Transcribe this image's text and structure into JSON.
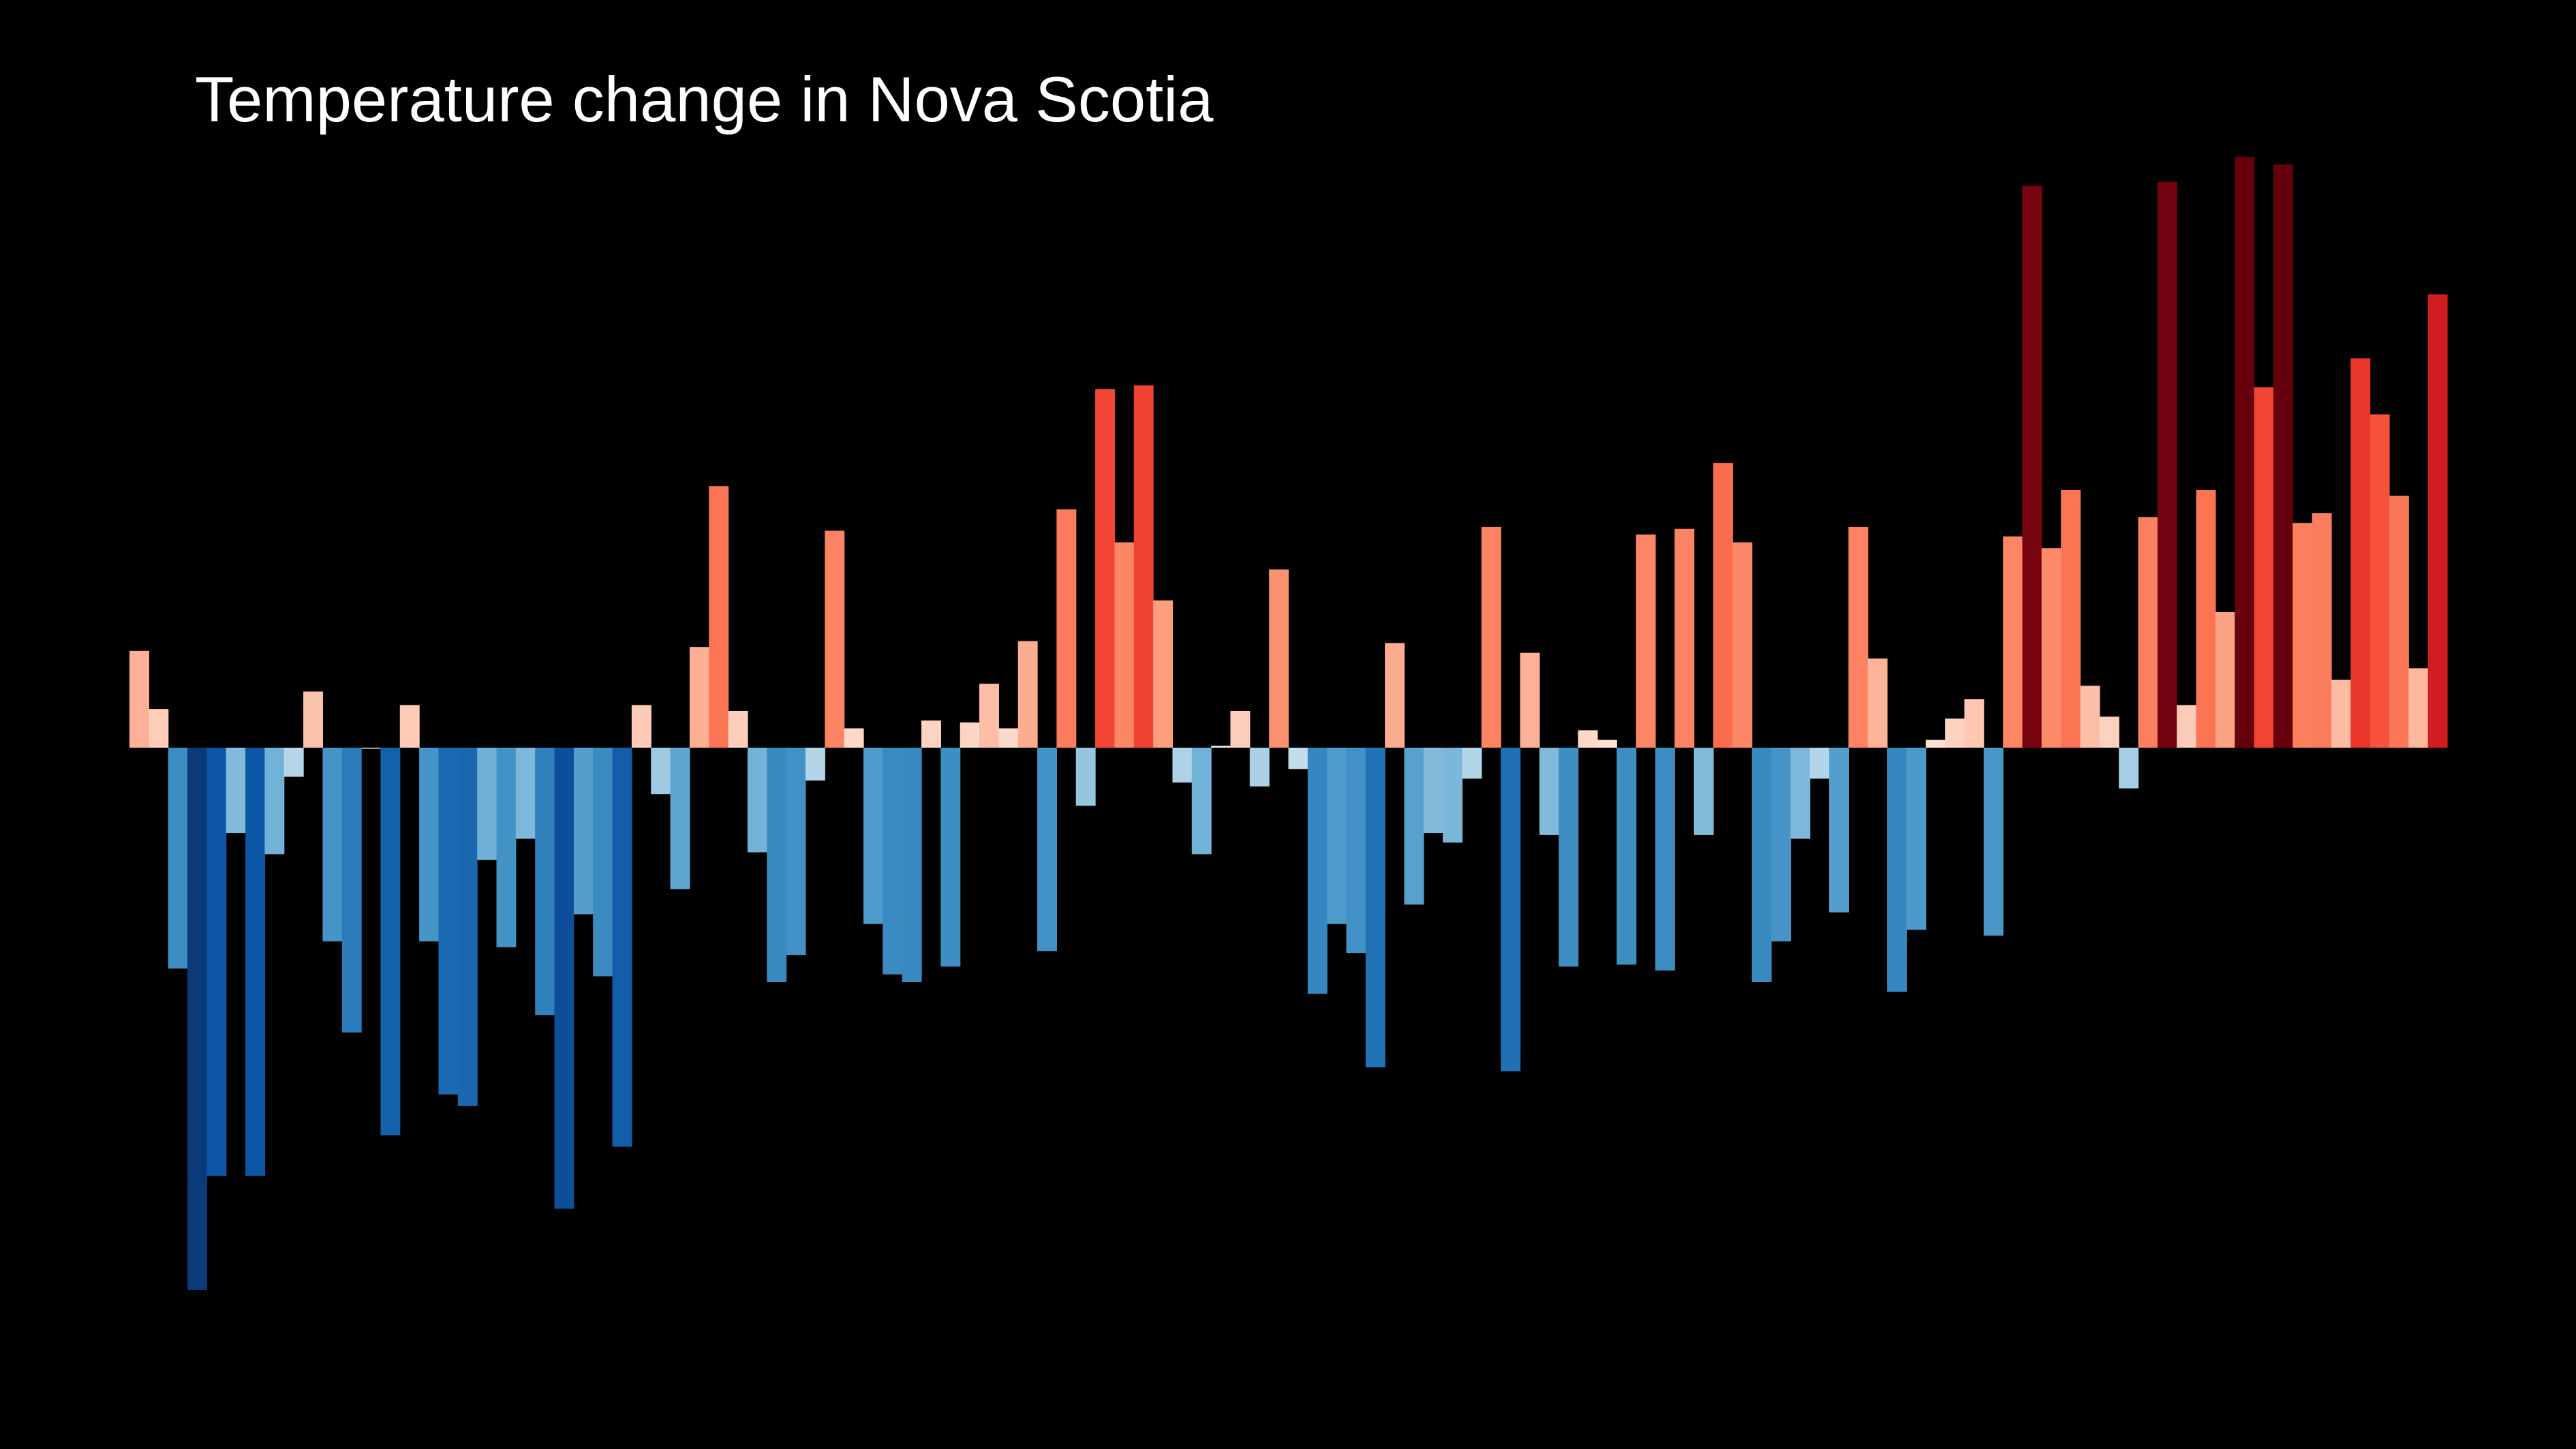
{
  "chart_data": {
    "type": "bar",
    "title": "Temperature change in Nova Scotia",
    "xlabel": "",
    "ylabel": "",
    "grid": false,
    "legend": "none",
    "ylim": [
      -2.8,
      3.05
    ],
    "colors": {
      "background": "#000000",
      "text": "#ffffff"
    },
    "values": [
      0.5,
      0.2,
      -1.14,
      -2.8,
      -2.21,
      -0.44,
      -2.21,
      -0.55,
      -0.15,
      0.29,
      -1.0,
      -1.47,
      0.0,
      -2.0,
      0.22,
      -1.0,
      -1.79,
      -1.85,
      -0.58,
      -1.03,
      -0.47,
      -1.38,
      -2.38,
      -0.86,
      -1.18,
      -2.06,
      0.22,
      -0.24,
      -0.73,
      0.52,
      1.35,
      0.19,
      -0.54,
      -1.21,
      -1.07,
      -0.17,
      1.12,
      0.1,
      -0.91,
      -1.17,
      -1.21,
      0.14,
      -1.13,
      0.13,
      0.33,
      0.1,
      0.55,
      -1.05,
      1.23,
      -0.3,
      1.85,
      1.06,
      1.87,
      0.76,
      -0.18,
      -0.55,
      0.01,
      0.19,
      -0.2,
      0.92,
      -0.11,
      -1.27,
      -0.91,
      -1.06,
      -1.65,
      0.54,
      -0.81,
      -0.44,
      -0.49,
      -0.16,
      1.14,
      -1.67,
      0.49,
      -0.45,
      -1.13,
      0.09,
      0.04,
      -1.12,
      1.1,
      -1.15,
      1.13,
      -0.45,
      1.47,
      1.06,
      -1.21,
      -1.0,
      -0.47,
      -0.16,
      -0.85,
      1.14,
      0.46,
      -1.26,
      -0.94,
      0.04,
      0.15,
      0.25,
      -0.97,
      1.09,
      2.9,
      1.03,
      1.33,
      0.32,
      0.16,
      -0.21,
      1.19,
      2.92,
      0.22,
      1.33,
      0.7,
      3.05,
      1.86,
      3.01,
      1.16,
      1.21,
      0.35,
      2.01,
      1.72,
      1.3,
      0.41,
      2.34
    ]
  }
}
